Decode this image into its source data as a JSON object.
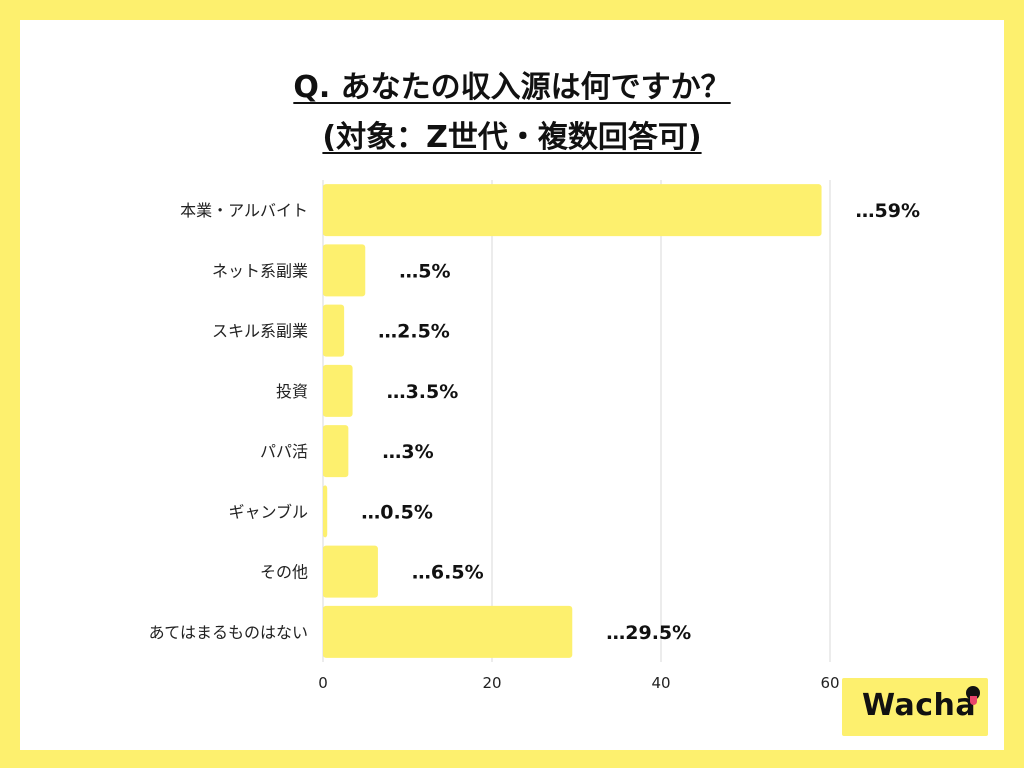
{
  "title": {
    "line1": "Q. あなたの収入源は何ですか？",
    "line2": "(対象：Z世代・複数回答可)"
  },
  "chart_data": {
    "type": "bar",
    "orientation": "horizontal",
    "categories": [
      "本業・アルバイト",
      "ネット系副業",
      "スキル系副業",
      "投資",
      "パパ活",
      "ギャンブル",
      "その他",
      "あてはまるものはない"
    ],
    "values": [
      59,
      5,
      2.5,
      3.5,
      3,
      0.5,
      6.5,
      29.5
    ],
    "data_labels": [
      "…59%",
      "…5%",
      "…2.5%",
      "…3.5%",
      "…3%",
      "…0.5%",
      "…6.5%",
      "…29.5%"
    ],
    "x_ticks": [
      0,
      20,
      40,
      60
    ],
    "xlim": [
      0,
      60
    ],
    "grid": true,
    "bar_color": "#fdf06e",
    "xlabel": "",
    "ylabel": ""
  },
  "logo": {
    "text": "Wacha"
  },
  "colors": {
    "background": "#fdf06e",
    "panel": "#ffffff",
    "grid": "#d9d9d9"
  }
}
